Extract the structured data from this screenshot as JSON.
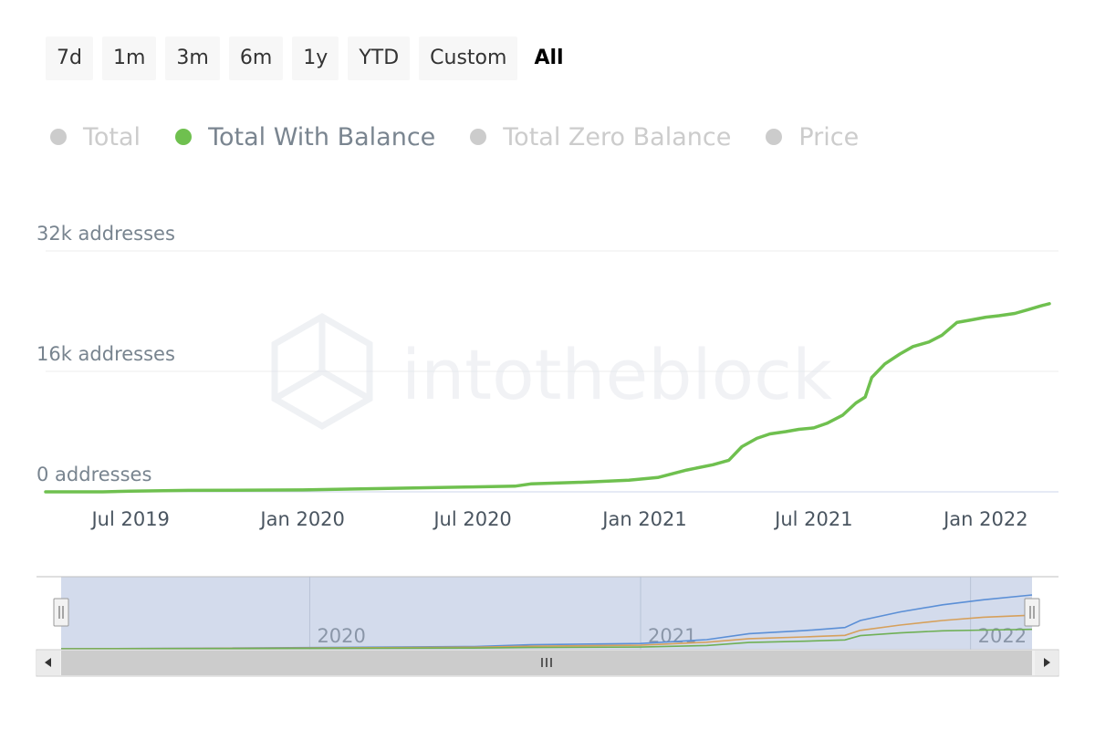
{
  "range_selector": {
    "buttons": [
      "7d",
      "1m",
      "3m",
      "6m",
      "1y",
      "YTD",
      "Custom"
    ],
    "active": "All"
  },
  "legend": [
    {
      "label": "Total",
      "enabled": false,
      "color": "#cccccc"
    },
    {
      "label": "Total With Balance",
      "enabled": true,
      "color": "#6fc04f"
    },
    {
      "label": "Total Zero Balance",
      "enabled": false,
      "color": "#cccccc"
    },
    {
      "label": "Price",
      "enabled": false,
      "color": "#cccccc"
    }
  ],
  "watermark": "intotheblock",
  "chart_data": {
    "type": "line",
    "series": [
      {
        "name": "Total With Balance",
        "color": "#6fc04f",
        "x": [
          "2019-04-01",
          "2019-06-01",
          "2019-07-01",
          "2019-09-01",
          "2020-01-01",
          "2020-04-01",
          "2020-07-01",
          "2020-08-15",
          "2020-09-01",
          "2020-11-01",
          "2020-12-15",
          "2021-01-15",
          "2021-02-15",
          "2021-03-15",
          "2021-04-01",
          "2021-04-15",
          "2021-05-01",
          "2021-05-15",
          "2021-06-01",
          "2021-06-15",
          "2021-07-01",
          "2021-07-15",
          "2021-08-01",
          "2021-08-15",
          "2021-08-25",
          "2021-09-01",
          "2021-09-15",
          "2021-10-01",
          "2021-10-15",
          "2021-11-01",
          "2021-11-15",
          "2021-12-01",
          "2021-12-15",
          "2022-01-01",
          "2022-01-15",
          "2022-02-01",
          "2022-02-15",
          "2022-03-01",
          "2022-03-10"
        ],
        "y": [
          0,
          0,
          100,
          200,
          250,
          450,
          650,
          750,
          1050,
          1300,
          1550,
          1900,
          2900,
          3600,
          4200,
          6000,
          7100,
          7700,
          8000,
          8300,
          8500,
          9100,
          10200,
          11800,
          12600,
          15200,
          17000,
          18300,
          19300,
          19900,
          20800,
          22500,
          22800,
          23200,
          23400,
          23700,
          24200,
          24700,
          25000
        ]
      }
    ],
    "xlabel": "",
    "ylabel": "",
    "ylim": [
      0,
      32000
    ],
    "y_ticks": [
      0,
      16000,
      32000
    ],
    "y_tick_labels": [
      "0 addresses",
      "16k addresses",
      "32k addresses"
    ],
    "x_ticks": [
      "2019-07-01",
      "2020-01-01",
      "2020-07-01",
      "2021-01-01",
      "2021-07-01",
      "2022-01-01"
    ],
    "x_tick_labels": [
      "Jul 2019",
      "Jan 2020",
      "Jul 2020",
      "Jan 2021",
      "Jul 2021",
      "Jan 2022"
    ],
    "xlim": [
      "2019-04-01",
      "2022-03-10"
    ],
    "grid": true,
    "legend_position": "top-left",
    "navigator": {
      "labels": [
        "2020",
        "2021",
        "2022"
      ],
      "series": [
        {
          "color": "#5b8fd6",
          "x": [
            "2019-04-01",
            "2019-09-01",
            "2020-07-01",
            "2020-09-01",
            "2021-01-01",
            "2021-03-15",
            "2021-05-01",
            "2021-07-01",
            "2021-08-15",
            "2021-09-01",
            "2021-10-15",
            "2021-12-01",
            "2022-01-15",
            "2022-03-10"
          ],
          "y": [
            0,
            200,
            900,
            1600,
            2100,
            3600,
            6000,
            7200,
            8400,
            11200,
            14600,
            17400,
            19400,
            21300
          ]
        },
        {
          "color": "#d6a05b",
          "x": [
            "2019-04-01",
            "2019-09-01",
            "2020-07-01",
            "2020-09-01",
            "2021-01-01",
            "2021-03-15",
            "2021-05-01",
            "2021-07-01",
            "2021-08-15",
            "2021-09-01",
            "2021-10-15",
            "2021-12-01",
            "2022-01-15",
            "2022-03-10"
          ],
          "y": [
            0,
            150,
            600,
            1000,
            1400,
            2600,
            4000,
            4700,
            5300,
            7300,
            9400,
            11200,
            12500,
            13300
          ]
        },
        {
          "color": "#6fb056",
          "x": [
            "2019-04-01",
            "2019-09-01",
            "2020-07-01",
            "2020-09-01",
            "2021-01-01",
            "2021-03-15",
            "2021-05-01",
            "2021-07-01",
            "2021-08-15",
            "2021-09-01",
            "2021-10-15",
            "2021-12-01",
            "2022-01-15",
            "2022-03-10"
          ],
          "y": [
            0,
            80,
            300,
            500,
            700,
            1300,
            2500,
            3000,
            3500,
            5200,
            6300,
            7100,
            7400,
            7700
          ]
        }
      ]
    }
  }
}
